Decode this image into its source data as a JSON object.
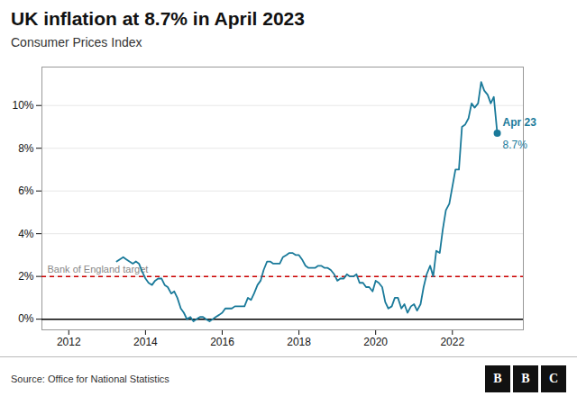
{
  "chart_data": {
    "type": "line",
    "title": "UK inflation at 8.7% in April 2023",
    "subtitle": "Consumer Prices Index",
    "source": "Source: Office for National Statistics",
    "logo": "BBC",
    "color": "#1a7a9a",
    "grid": true,
    "xlim": [
      2011.3,
      2023.85
    ],
    "xticks": [
      2012,
      2014,
      2016,
      2018,
      2020,
      2022
    ],
    "ylim": [
      -0.5,
      11.8
    ],
    "yticks": [
      {
        "value": 0,
        "label": "0%"
      },
      {
        "value": 2,
        "label": "2%"
      },
      {
        "value": 4,
        "label": "4%"
      },
      {
        "value": 6,
        "label": "6%"
      },
      {
        "value": 8,
        "label": "8%"
      },
      {
        "value": 10,
        "label": "10%"
      }
    ],
    "annotations": [
      {
        "type": "hline",
        "y": 2.0,
        "label": "Bank of England target",
        "color": "#cc0000",
        "label_color": "#888888",
        "line_style": "dashed"
      },
      {
        "type": "hline",
        "y": 0,
        "color": "#000000",
        "line_style": "solid"
      },
      {
        "type": "point",
        "x": 2023.17,
        "y": 8.7,
        "marker": "dot",
        "color": "#1a7a9a",
        "label": "Apr 23",
        "sublabel": "8.7%"
      }
    ],
    "x": [
      2013.25,
      2013.33,
      2013.42,
      2013.5,
      2013.58,
      2013.67,
      2013.75,
      2013.83,
      2013.92,
      2014.0,
      2014.08,
      2014.17,
      2014.25,
      2014.33,
      2014.42,
      2014.5,
      2014.58,
      2014.67,
      2014.75,
      2014.83,
      2014.92,
      2015.0,
      2015.08,
      2015.17,
      2015.25,
      2015.33,
      2015.42,
      2015.5,
      2015.58,
      2015.67,
      2015.75,
      2015.83,
      2015.92,
      2016.0,
      2016.08,
      2016.17,
      2016.25,
      2016.33,
      2016.42,
      2016.5,
      2016.58,
      2016.67,
      2016.75,
      2016.83,
      2016.92,
      2017.0,
      2017.08,
      2017.17,
      2017.25,
      2017.33,
      2017.42,
      2017.5,
      2017.58,
      2017.67,
      2017.75,
      2017.83,
      2017.92,
      2018.0,
      2018.08,
      2018.17,
      2018.25,
      2018.33,
      2018.42,
      2018.5,
      2018.58,
      2018.67,
      2018.75,
      2018.83,
      2018.92,
      2019.0,
      2019.08,
      2019.17,
      2019.25,
      2019.33,
      2019.42,
      2019.5,
      2019.58,
      2019.67,
      2019.75,
      2019.83,
      2019.92,
      2020.0,
      2020.08,
      2020.17,
      2020.25,
      2020.33,
      2020.42,
      2020.5,
      2020.58,
      2020.67,
      2020.75,
      2020.83,
      2020.92,
      2021.0,
      2021.08,
      2021.17,
      2021.25,
      2021.33,
      2021.42,
      2021.5,
      2021.58,
      2021.67,
      2021.75,
      2021.83,
      2021.92,
      2022.0,
      2022.08,
      2022.17,
      2022.25,
      2022.33,
      2022.42,
      2022.5,
      2022.58,
      2022.67,
      2022.75,
      2022.83,
      2022.92,
      2023.0,
      2023.08,
      2023.17
    ],
    "values": [
      2.7,
      2.8,
      2.9,
      2.8,
      2.7,
      2.6,
      2.7,
      2.6,
      2.2,
      1.9,
      1.7,
      1.6,
      1.8,
      1.9,
      1.9,
      1.6,
      1.5,
      1.2,
      1.3,
      1.0,
      0.5,
      0.3,
      0.0,
      0.1,
      -0.1,
      0.0,
      0.1,
      0.1,
      0.0,
      -0.1,
      0.0,
      0.1,
      0.2,
      0.3,
      0.5,
      0.5,
      0.5,
      0.6,
      0.6,
      0.6,
      0.6,
      1.0,
      0.9,
      1.2,
      1.6,
      1.8,
      2.3,
      2.7,
      2.7,
      2.6,
      2.6,
      2.6,
      2.9,
      3.0,
      3.1,
      3.1,
      3.0,
      3.0,
      2.8,
      2.5,
      2.4,
      2.4,
      2.4,
      2.5,
      2.5,
      2.4,
      2.4,
      2.3,
      2.1,
      1.8,
      1.9,
      1.9,
      2.1,
      2.0,
      2.0,
      2.1,
      1.7,
      1.7,
      1.5,
      1.5,
      1.3,
      1.8,
      1.7,
      1.5,
      0.8,
      0.5,
      0.6,
      1.0,
      1.0,
      0.5,
      0.7,
      0.3,
      0.6,
      0.7,
      0.4,
      0.7,
      1.5,
      2.1,
      2.5,
      2.0,
      3.2,
      3.1,
      4.2,
      5.1,
      5.4,
      6.2,
      7.0,
      7.0,
      9.0,
      9.1,
      9.4,
      10.1,
      9.9,
      10.1,
      11.1,
      10.7,
      10.5,
      10.1,
      10.4,
      8.7
    ]
  }
}
